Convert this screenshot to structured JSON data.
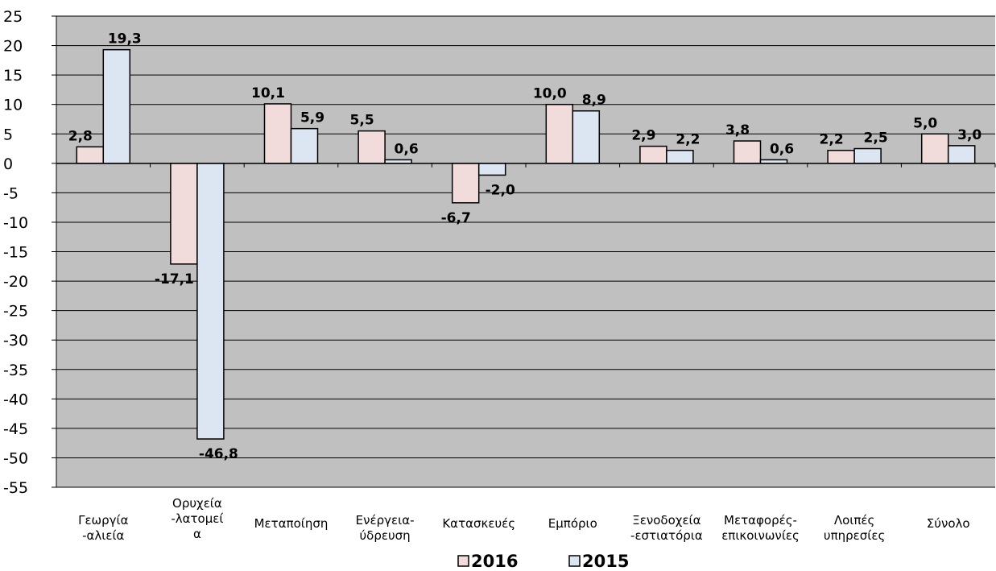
{
  "chart_data": {
    "type": "bar",
    "categories": [
      [
        "Γεωργία",
        "-αλιεία"
      ],
      [
        "Ορυχεία",
        "-λατομεί",
        "α"
      ],
      [
        "Μεταποίηση"
      ],
      [
        "Ενέργεια-",
        "ύδρευση"
      ],
      [
        "Κατασκευές"
      ],
      [
        "Εμπόριο"
      ],
      [
        "Ξενοδοχεία",
        "-εστιατόρια"
      ],
      [
        "Μεταφορές-",
        "επικοινωνίες"
      ],
      [
        "Λοιπές",
        "υπηρεσίες"
      ],
      [
        "Σύνολο"
      ]
    ],
    "series": [
      {
        "name": "2016",
        "color": "#f2dcdb",
        "values": [
          2.8,
          -17.1,
          10.1,
          5.5,
          -6.7,
          10.0,
          2.9,
          3.8,
          2.2,
          5.0
        ],
        "labels": [
          "2,8",
          "-17,1",
          "10,1",
          "5,5",
          "-6,7",
          "10,0",
          "2,9",
          "3,8",
          "2,2",
          "5,0"
        ]
      },
      {
        "name": "2015",
        "color": "#dce6f2",
        "values": [
          19.3,
          -46.8,
          5.9,
          0.6,
          -2.0,
          8.9,
          2.2,
          0.6,
          2.5,
          3.0
        ],
        "labels": [
          "19,3",
          "-46,8",
          "5,9",
          "0,6",
          "-2,0",
          "8,9",
          "2,2",
          "0,6",
          "2,5",
          "3,0"
        ]
      }
    ],
    "title": "",
    "xlabel": "",
    "ylabel": "",
    "ylim": [
      -55,
      25
    ],
    "yticks": [
      25,
      20,
      15,
      10,
      5,
      0,
      -5,
      -10,
      -15,
      -20,
      -25,
      -30,
      -35,
      -40,
      -45,
      -50,
      -55
    ],
    "grid": true,
    "plot_background": "#c0c0c0",
    "legend_position": "bottom"
  }
}
